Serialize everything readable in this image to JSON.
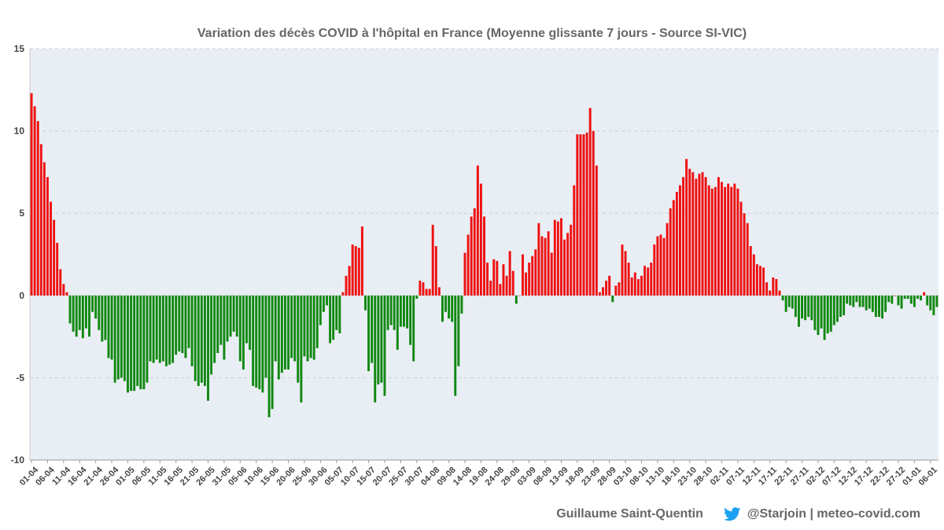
{
  "chart_data": {
    "type": "bar",
    "title": "Variation des décès COVID à l'hôpital en France (Moyenne glissante 7 jours - Source SI-VIC)",
    "xlabel": "",
    "ylabel": "",
    "ylim": [
      -10,
      15
    ],
    "yticks": [
      "15",
      "10",
      "5",
      "0",
      "-5",
      "-10"
    ],
    "grid": true,
    "colors": {
      "positive": "#ee1111",
      "negative": "#118811",
      "plot_bg": "#e9eef5",
      "grid": "#c8d0dc"
    },
    "x_labels": [
      "01-04",
      "06-04",
      "11-04",
      "16-04",
      "21-04",
      "26-04",
      "01-05",
      "06-05",
      "11-05",
      "16-05",
      "21-05",
      "26-05",
      "31-05",
      "05-06",
      "10-06",
      "15-06",
      "20-06",
      "25-06",
      "30-06",
      "05-07",
      "10-07",
      "15-07",
      "20-07",
      "25-07",
      "30-07",
      "04-08",
      "09-08",
      "14-08",
      "19-08",
      "24-08",
      "29-08",
      "03-09",
      "08-09",
      "13-09",
      "18-09",
      "23-09",
      "28-09",
      "03-10",
      "08-10",
      "13-10",
      "18-10",
      "23-10",
      "28-10",
      "02-11",
      "07-11",
      "12-11",
      "17-11",
      "22-11",
      "27-11",
      "02-12",
      "07-12",
      "12-12",
      "17-12",
      "22-12",
      "27-12",
      "01-01",
      "06-01"
    ],
    "values": [
      12.3,
      11.5,
      10.6,
      9.2,
      8.1,
      7.2,
      5.7,
      4.6,
      3.2,
      1.6,
      0.7,
      0.2,
      -1.7,
      -2.2,
      -2.5,
      -2.1,
      -2.6,
      -2.0,
      -2.5,
      -1.0,
      -1.4,
      -2.1,
      -2.8,
      -2.7,
      -3.8,
      -3.9,
      -5.3,
      -5.1,
      -5.0,
      -5.2,
      -5.9,
      -5.8,
      -5.8,
      -5.5,
      -5.7,
      -5.7,
      -5.3,
      -4.0,
      -4.1,
      -3.9,
      -4.1,
      -4.0,
      -4.3,
      -4.2,
      -4.1,
      -3.6,
      -3.4,
      -3.5,
      -3.8,
      -3.2,
      -4.3,
      -5.2,
      -5.5,
      -5.3,
      -5.5,
      -6.4,
      -4.8,
      -4.1,
      -3.5,
      -3.0,
      -3.9,
      -2.8,
      -2.5,
      -2.2,
      -2.5,
      -4.0,
      -4.5,
      -2.9,
      -3.3,
      -5.5,
      -5.6,
      -5.7,
      -5.9,
      -5.0,
      -7.4,
      -6.9,
      -4.0,
      -5.1,
      -4.7,
      -4.5,
      -4.5,
      -3.8,
      -4.0,
      -5.3,
      -6.5,
      -3.7,
      -4.0,
      -3.8,
      -3.9,
      -3.2,
      -1.8,
      -1.0,
      -0.6,
      -2.9,
      -2.7,
      -2.1,
      -2.3,
      0.2,
      1.2,
      1.8,
      3.1,
      3.0,
      2.9,
      4.2,
      -0.9,
      -4.6,
      -4.1,
      -6.5,
      -5.4,
      -5.3,
      -6.1,
      -2.1,
      -1.8,
      -2.1,
      -3.3,
      -1.9,
      -1.9,
      -2.0,
      -3.0,
      -4.0,
      -0.2,
      0.9,
      0.8,
      0.4,
      0.4,
      4.3,
      3.0,
      0.5,
      -1.6,
      -1.0,
      -1.4,
      -1.6,
      -6.1,
      -4.3,
      -1.1,
      2.6,
      3.7,
      4.8,
      5.3,
      7.9,
      6.8,
      4.8,
      2.0,
      0.9,
      2.2,
      2.1,
      0.7,
      1.9,
      1.2,
      2.7,
      1.5,
      -0.5,
      0.0,
      2.5,
      1.4,
      2.0,
      2.4,
      2.8,
      4.4,
      3.6,
      3.5,
      3.9,
      2.6,
      4.6,
      4.5,
      4.7,
      3.4,
      3.8,
      4.3,
      6.7,
      9.8,
      9.8,
      9.8,
      9.9,
      11.4,
      10.0,
      7.9,
      0.2,
      0.5,
      0.9,
      1.2,
      -0.4,
      0.6,
      0.8,
      3.1,
      2.7,
      2.0,
      1.1,
      1.4,
      1.0,
      1.2,
      1.8,
      1.7,
      2.0,
      3.1,
      3.6,
      3.7,
      3.5,
      4.4,
      5.3,
      5.8,
      6.3,
      6.7,
      7.2,
      8.3,
      7.7,
      7.5,
      7.1,
      7.4,
      7.5,
      7.2,
      6.7,
      6.5,
      6.6,
      7.2,
      6.9,
      6.6,
      6.8,
      6.6,
      6.8,
      6.5,
      5.7,
      5.0,
      4.4,
      3.0,
      2.5,
      1.9,
      1.8,
      1.7,
      0.8,
      0.3,
      1.1,
      1.0,
      0.3,
      -0.3,
      -1.0,
      -0.7,
      -0.8,
      -1.3,
      -1.9,
      -1.4,
      -1.5,
      -1.3,
      -1.5,
      -2.1,
      -2.4,
      -2.0,
      -2.7,
      -2.3,
      -2.2,
      -1.8,
      -1.6,
      -1.3,
      -1.2,
      -0.5,
      -0.6,
      -0.7,
      -0.4,
      -0.7,
      -0.7,
      -0.9,
      -0.8,
      -1.0,
      -1.3,
      -1.3,
      -1.4,
      -1.0,
      -0.4,
      -0.5,
      0.0,
      -0.6,
      -0.8,
      -0.2,
      -0.2,
      -0.5,
      -0.7,
      -0.2,
      -0.3,
      0.2,
      -0.6,
      -0.9,
      -1.2,
      -0.7
    ]
  },
  "footer": {
    "author": "Guillaume Saint-Quentin",
    "twitter_icon": "twitter-bird-icon",
    "credits": "@Starjoin | meteo-covid.com"
  }
}
